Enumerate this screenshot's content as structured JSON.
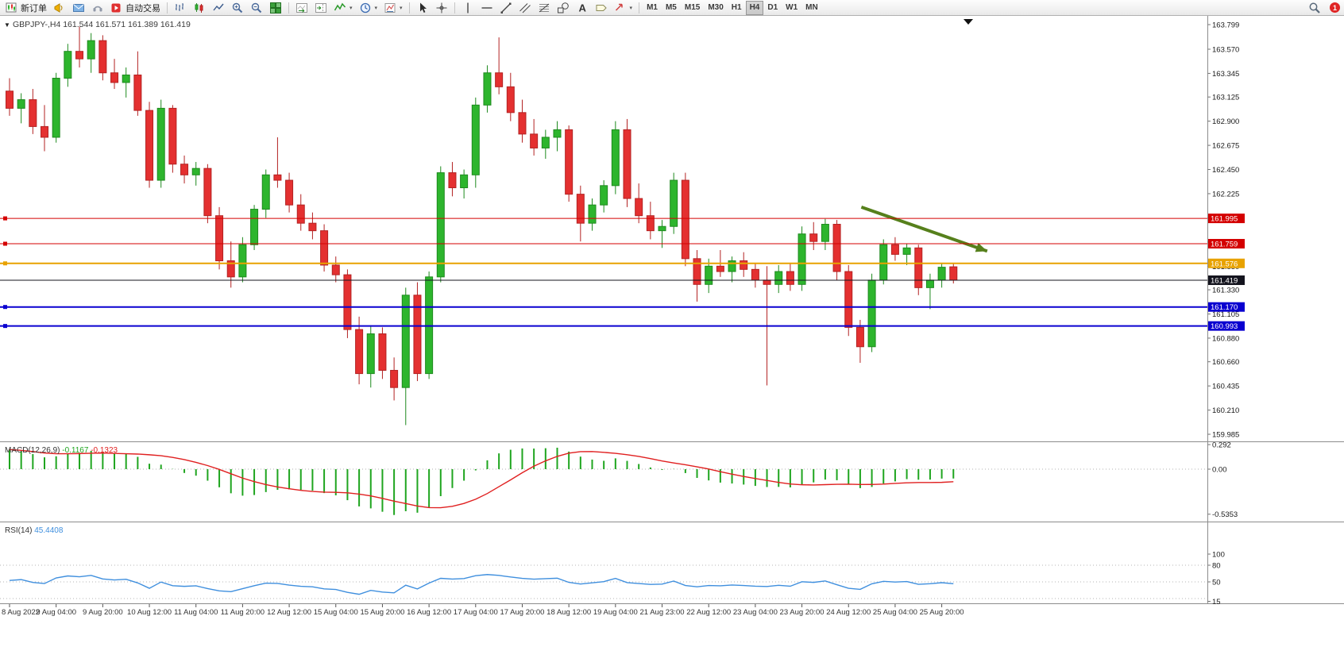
{
  "toolbar": {
    "badge": "1",
    "groups": [
      {
        "items": [
          {
            "name": "new-order-button",
            "icon": "neworder",
            "label": "新订单"
          },
          {
            "name": "announcement-button",
            "icon": "horn"
          },
          {
            "name": "message-button",
            "icon": "message"
          },
          {
            "name": "support-button",
            "icon": "support"
          },
          {
            "name": "autotrading-button",
            "icon": "autotrading",
            "label": "自动交易"
          }
        ]
      },
      {
        "items": [
          {
            "name": "bar-chart-button",
            "icon": "barchart"
          },
          {
            "name": "candlestick-chart-button",
            "icon": "candles"
          },
          {
            "name": "line-chart-button",
            "icon": "linechart"
          },
          {
            "name": "zoom-in-button",
            "icon": "zoomin"
          },
          {
            "name": "zoom-out-button",
            "icon": "zoomout"
          },
          {
            "name": "tile-windows-button",
            "icon": "tile"
          }
        ]
      },
      {
        "items": [
          {
            "name": "auto-scroll-button",
            "icon": "autoscroll"
          },
          {
            "name": "chart-shift-button",
            "icon": "chartshift"
          },
          {
            "name": "indicators-button",
            "icon": "indicators",
            "dropdown": true
          },
          {
            "name": "periods-button",
            "icon": "periods",
            "dropdown": true
          },
          {
            "name": "templates-button",
            "icon": "template",
            "dropdown": true
          }
        ]
      },
      {
        "items": [
          {
            "name": "cursor-button",
            "icon": "cursor"
          },
          {
            "name": "crosshair-button",
            "icon": "crosshair"
          }
        ]
      },
      {
        "items": [
          {
            "name": "vertical-line-button",
            "icon": "vline"
          },
          {
            "name": "horizontal-line-button",
            "icon": "hline"
          },
          {
            "name": "trendline-button",
            "icon": "trendline"
          },
          {
            "name": "channel-button",
            "icon": "channel"
          },
          {
            "name": "fibonacci-button",
            "icon": "fibonacci"
          },
          {
            "name": "shapes-button",
            "icon": "shapes"
          },
          {
            "name": "text-button",
            "icon": "text"
          },
          {
            "name": "text-label-button",
            "icon": "label"
          },
          {
            "name": "arrows-button",
            "icon": "arrows",
            "dropdown": true
          }
        ]
      },
      {
        "items": [
          {
            "name": "tf-m1",
            "label": "M1",
            "tf": true
          },
          {
            "name": "tf-m5",
            "label": "M5",
            "tf": true
          },
          {
            "name": "tf-m15",
            "label": "M15",
            "tf": true
          },
          {
            "name": "tf-m30",
            "label": "M30",
            "tf": true
          },
          {
            "name": "tf-h1",
            "label": "H1",
            "tf": true
          },
          {
            "name": "tf-h4",
            "label": "H4",
            "tf": true,
            "active": true
          },
          {
            "name": "tf-d1",
            "label": "D1",
            "tf": true
          },
          {
            "name": "tf-w1",
            "label": "W1",
            "tf": true
          },
          {
            "name": "tf-mn",
            "label": "MN",
            "tf": true
          }
        ]
      }
    ]
  },
  "chart": {
    "symbol_line": {
      "collapse": "▼",
      "symbol": "GBPJPY-,H4",
      "ohlc": "161.544 161.571 161.389 161.419"
    }
  },
  "chart_data": {
    "type": "candlestick",
    "symbol": "GBPJPY-",
    "timeframe": "H4",
    "title": "GBPJPY-,H4 161.544 161.571 161.389 161.419",
    "y_range": [
      159.985,
      163.799
    ],
    "y_axis_ticks": [
      "163.799",
      "163.570",
      "163.345",
      "163.125",
      "162.900",
      "162.675",
      "162.450",
      "162.225",
      "162.000",
      "161.775",
      "161.550",
      "161.330",
      "161.105",
      "160.880",
      "160.660",
      "160.435",
      "160.210",
      "159.985"
    ],
    "x_labels": [
      "8 Aug 2022",
      "9 Aug 04:00",
      "9 Aug 20:00",
      "10 Aug 12:00",
      "11 Aug 04:00",
      "11 Aug 20:00",
      "12 Aug 12:00",
      "15 Aug 04:00",
      "15 Aug 20:00",
      "16 Aug 12:00",
      "17 Aug 04:00",
      "17 Aug 20:00",
      "18 Aug 12:00",
      "19 Aug 04:00",
      "21 Aug 23:00",
      "22 Aug 12:00",
      "23 Aug 04:00",
      "23 Aug 20:00",
      "24 Aug 12:00",
      "25 Aug 04:00",
      "25 Aug 20:00"
    ],
    "x_label_every": 4,
    "candle_up_color": "#2db52d",
    "candle_down_color": "#e43030",
    "ohlc": [
      [
        163.18,
        163.3,
        162.95,
        163.02
      ],
      [
        163.02,
        163.16,
        162.88,
        163.1
      ],
      [
        163.1,
        163.2,
        162.78,
        162.85
      ],
      [
        162.85,
        163.05,
        162.62,
        162.75
      ],
      [
        162.75,
        163.35,
        162.7,
        163.3
      ],
      [
        163.3,
        163.62,
        163.22,
        163.55
      ],
      [
        163.55,
        163.78,
        163.4,
        163.48
      ],
      [
        163.48,
        163.72,
        163.35,
        163.65
      ],
      [
        163.65,
        163.7,
        163.28,
        163.35
      ],
      [
        163.35,
        163.48,
        163.2,
        163.26
      ],
      [
        163.26,
        163.4,
        163.12,
        163.33
      ],
      [
        163.33,
        163.55,
        162.95,
        163.0
      ],
      [
        163.0,
        163.08,
        162.28,
        162.35
      ],
      [
        162.35,
        163.1,
        162.28,
        163.02
      ],
      [
        163.02,
        163.05,
        162.42,
        162.5
      ],
      [
        162.5,
        162.58,
        162.32,
        162.4
      ],
      [
        162.4,
        162.52,
        162.3,
        162.46
      ],
      [
        162.46,
        162.5,
        161.95,
        162.02
      ],
      [
        162.02,
        162.1,
        161.52,
        161.6
      ],
      [
        161.6,
        161.78,
        161.35,
        161.45
      ],
      [
        161.45,
        161.82,
        161.4,
        161.75
      ],
      [
        161.75,
        162.12,
        161.7,
        162.08
      ],
      [
        162.08,
        162.45,
        162.0,
        162.4
      ],
      [
        162.4,
        162.75,
        162.28,
        162.35
      ],
      [
        162.35,
        162.42,
        162.05,
        162.12
      ],
      [
        162.12,
        162.22,
        161.88,
        161.95
      ],
      [
        161.95,
        162.05,
        161.8,
        161.88
      ],
      [
        161.88,
        161.94,
        161.5,
        161.56
      ],
      [
        161.56,
        161.64,
        161.4,
        161.47
      ],
      [
        161.47,
        161.52,
        160.88,
        160.96
      ],
      [
        160.96,
        161.08,
        160.45,
        160.55
      ],
      [
        160.55,
        161.0,
        160.42,
        160.92
      ],
      [
        160.92,
        160.98,
        160.5,
        160.58
      ],
      [
        160.58,
        160.7,
        160.3,
        160.42
      ],
      [
        160.42,
        161.35,
        160.07,
        161.28
      ],
      [
        161.28,
        161.4,
        160.48,
        160.55
      ],
      [
        160.55,
        161.5,
        160.5,
        161.45
      ],
      [
        161.45,
        162.48,
        161.4,
        162.42
      ],
      [
        162.42,
        162.52,
        162.2,
        162.28
      ],
      [
        162.28,
        162.45,
        162.18,
        162.4
      ],
      [
        162.4,
        163.12,
        162.28,
        163.05
      ],
      [
        163.05,
        163.42,
        162.98,
        163.35
      ],
      [
        163.35,
        163.68,
        163.15,
        163.22
      ],
      [
        163.22,
        163.35,
        162.9,
        162.98
      ],
      [
        162.98,
        163.1,
        162.7,
        162.78
      ],
      [
        162.78,
        162.92,
        162.58,
        162.65
      ],
      [
        162.65,
        162.82,
        162.55,
        162.75
      ],
      [
        162.75,
        162.9,
        162.62,
        162.82
      ],
      [
        162.82,
        162.86,
        162.15,
        162.22
      ],
      [
        162.22,
        162.3,
        161.78,
        161.95
      ],
      [
        161.95,
        162.18,
        161.88,
        162.12
      ],
      [
        162.12,
        162.35,
        162.05,
        162.3
      ],
      [
        162.3,
        162.9,
        162.22,
        162.82
      ],
      [
        162.82,
        162.92,
        162.1,
        162.18
      ],
      [
        162.18,
        162.32,
        161.95,
        162.02
      ],
      [
        162.02,
        162.15,
        161.8,
        161.88
      ],
      [
        161.88,
        161.98,
        161.72,
        161.92
      ],
      [
        161.92,
        162.42,
        161.85,
        162.35
      ],
      [
        162.35,
        162.42,
        161.55,
        161.62
      ],
      [
        161.62,
        161.7,
        161.22,
        161.38
      ],
      [
        161.38,
        161.62,
        161.3,
        161.55
      ],
      [
        161.55,
        161.7,
        161.45,
        161.5
      ],
      [
        161.5,
        161.64,
        161.4,
        161.6
      ],
      [
        161.6,
        161.68,
        161.45,
        161.52
      ],
      [
        161.52,
        161.58,
        161.35,
        161.42
      ],
      [
        161.42,
        161.55,
        160.44,
        161.38
      ],
      [
        161.38,
        161.56,
        161.3,
        161.5
      ],
      [
        161.5,
        161.58,
        161.32,
        161.38
      ],
      [
        161.38,
        161.92,
        161.32,
        161.85
      ],
      [
        161.85,
        161.96,
        161.7,
        161.78
      ],
      [
        161.78,
        161.99,
        161.7,
        161.94
      ],
      [
        161.94,
        161.98,
        161.42,
        161.5
      ],
      [
        161.5,
        161.56,
        160.9,
        160.98
      ],
      [
        160.98,
        161.05,
        160.65,
        160.8
      ],
      [
        160.8,
        161.48,
        160.75,
        161.42
      ],
      [
        161.42,
        161.8,
        161.38,
        161.75
      ],
      [
        161.75,
        161.82,
        161.6,
        161.66
      ],
      [
        161.66,
        161.76,
        161.56,
        161.72
      ],
      [
        161.72,
        161.75,
        161.28,
        161.35
      ],
      [
        161.35,
        161.48,
        161.15,
        161.42
      ],
      [
        161.42,
        161.58,
        161.35,
        161.54
      ],
      [
        161.544,
        161.571,
        161.389,
        161.419
      ]
    ],
    "horizontal_lines": [
      {
        "price": 161.995,
        "label": "161.995",
        "color": "#d40000",
        "width": 1,
        "handle": true
      },
      {
        "price": 161.759,
        "label": "161.759",
        "color": "#d40000",
        "width": 1,
        "handle": true
      },
      {
        "price": 161.576,
        "label": "161.576",
        "color": "#e8a200",
        "width": 2,
        "handle": true
      },
      {
        "price": 161.419,
        "label": "161.419",
        "color": "#14141e",
        "width": 1,
        "is_price": true
      },
      {
        "price": 161.17,
        "label": "161.170",
        "color": "#0a00d0",
        "width": 2,
        "handle": true
      },
      {
        "price": 160.993,
        "label": "160.993",
        "color": "#0a00d0",
        "width": 2,
        "handle": true
      }
    ],
    "arrow_annotation": {
      "from": {
        "bar": 73.1,
        "price": 162.1
      },
      "to": {
        "bar": 83.9,
        "price": 161.69
      },
      "color": "#56801c"
    },
    "indicators": [
      {
        "type": "MACD",
        "label": "MACD(12,26,9)",
        "values": [
          "-0.1167",
          "-0.1323"
        ],
        "axis_ticks": [
          "0.292",
          "0.00",
          "-0.5353"
        ],
        "histogram_color": "#1fa51f",
        "signal_color": "#e02020"
      },
      {
        "type": "RSI",
        "label": "RSI(14)",
        "value": "45.4408",
        "axis_ticks": [
          "100",
          "80",
          "50",
          "15"
        ],
        "levels": [
          80,
          50,
          20
        ],
        "line_color": "#3f8fde"
      }
    ]
  }
}
